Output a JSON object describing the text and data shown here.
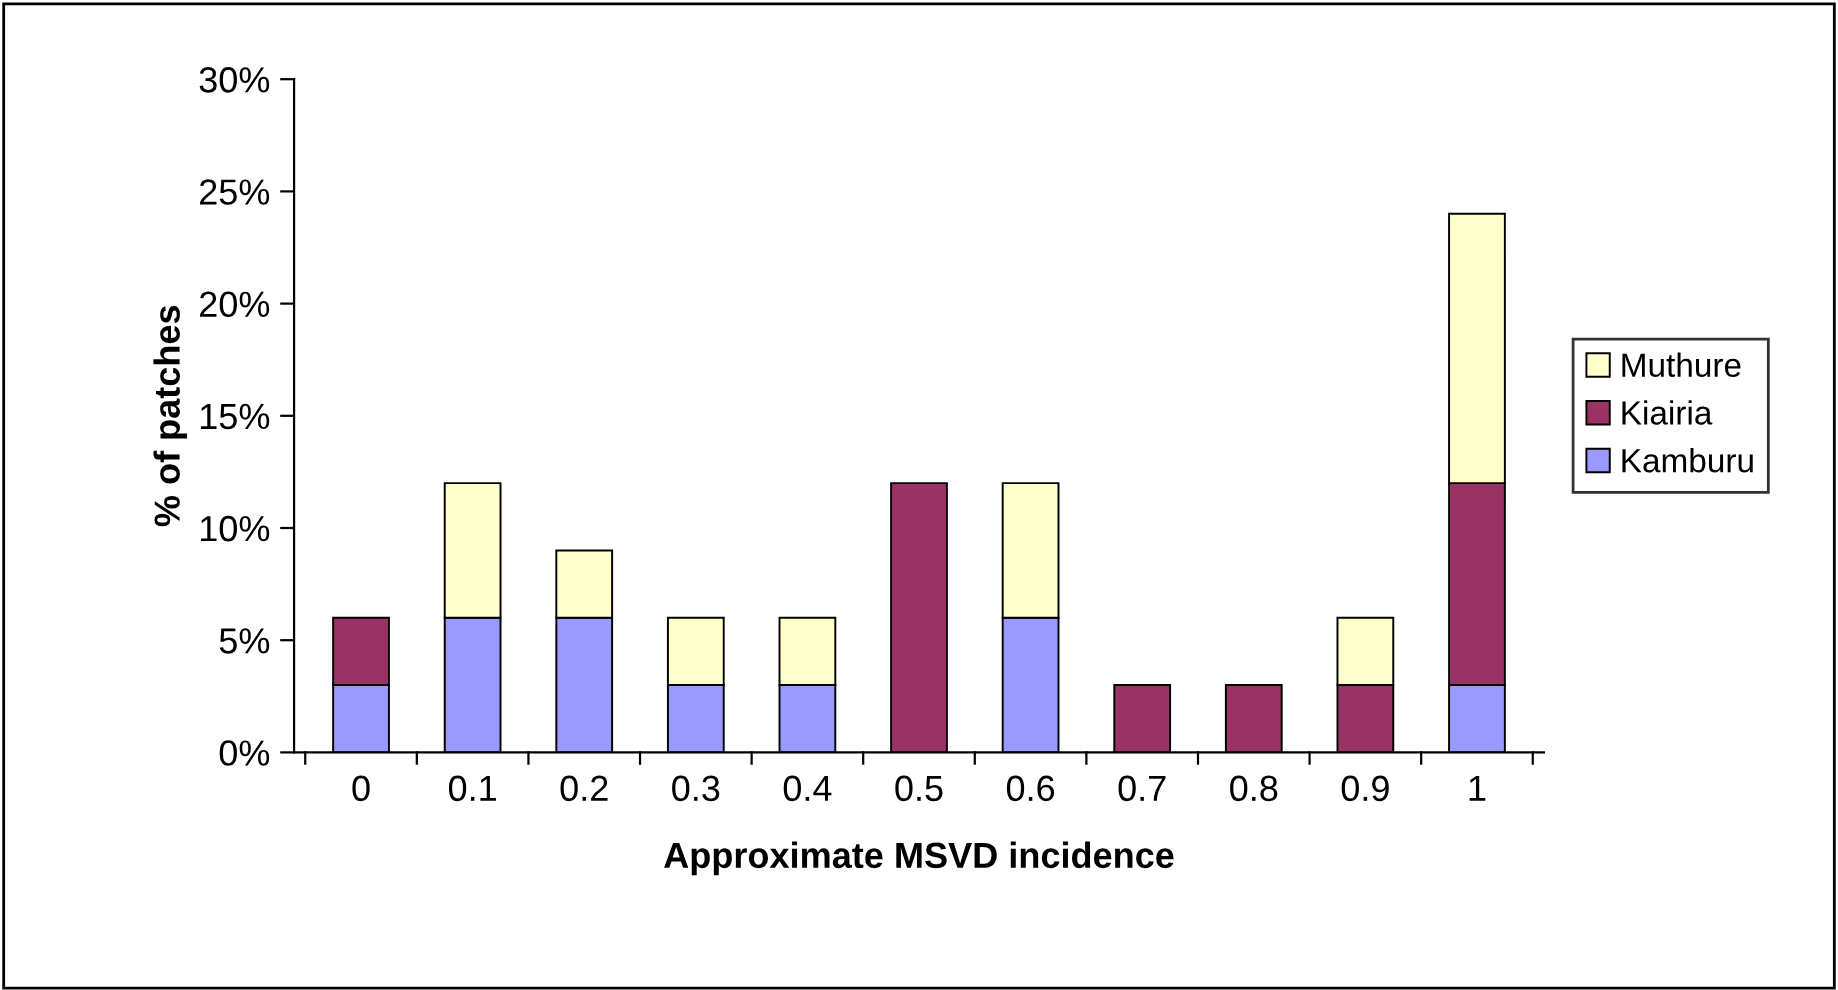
{
  "chart_data": {
    "type": "bar",
    "stacked": true,
    "xlabel": "Approximate MSVD incidence",
    "ylabel": "% of patches",
    "categories": [
      "0",
      "0.1",
      "0.2",
      "0.3",
      "0.4",
      "0.5",
      "0.6",
      "0.7",
      "0.8",
      "0.9",
      "1"
    ],
    "series": [
      {
        "name": "Kamburu",
        "color": "#9999ff",
        "values": [
          3,
          6,
          6,
          3,
          3,
          null,
          6,
          null,
          null,
          null,
          3
        ]
      },
      {
        "name": "Kiairia",
        "color": "#993366",
        "values": [
          3,
          null,
          null,
          null,
          null,
          12,
          null,
          3,
          3,
          3,
          9
        ]
      },
      {
        "name": "Muthure",
        "color": "#ffffcc",
        "values": [
          null,
          6,
          3,
          3,
          3,
          null,
          6,
          null,
          null,
          3,
          12
        ]
      }
    ],
    "ylim": [
      0,
      30
    ],
    "yticks": [
      {
        "value": 0,
        "label": "0%"
      },
      {
        "value": 5,
        "label": "5%"
      },
      {
        "value": 10,
        "label": "10%"
      },
      {
        "value": 15,
        "label": "15%"
      },
      {
        "value": 20,
        "label": "20%"
      },
      {
        "value": 25,
        "label": "25%"
      },
      {
        "value": 30,
        "label": "30%"
      }
    ],
    "grid": false,
    "legend": "right"
  }
}
